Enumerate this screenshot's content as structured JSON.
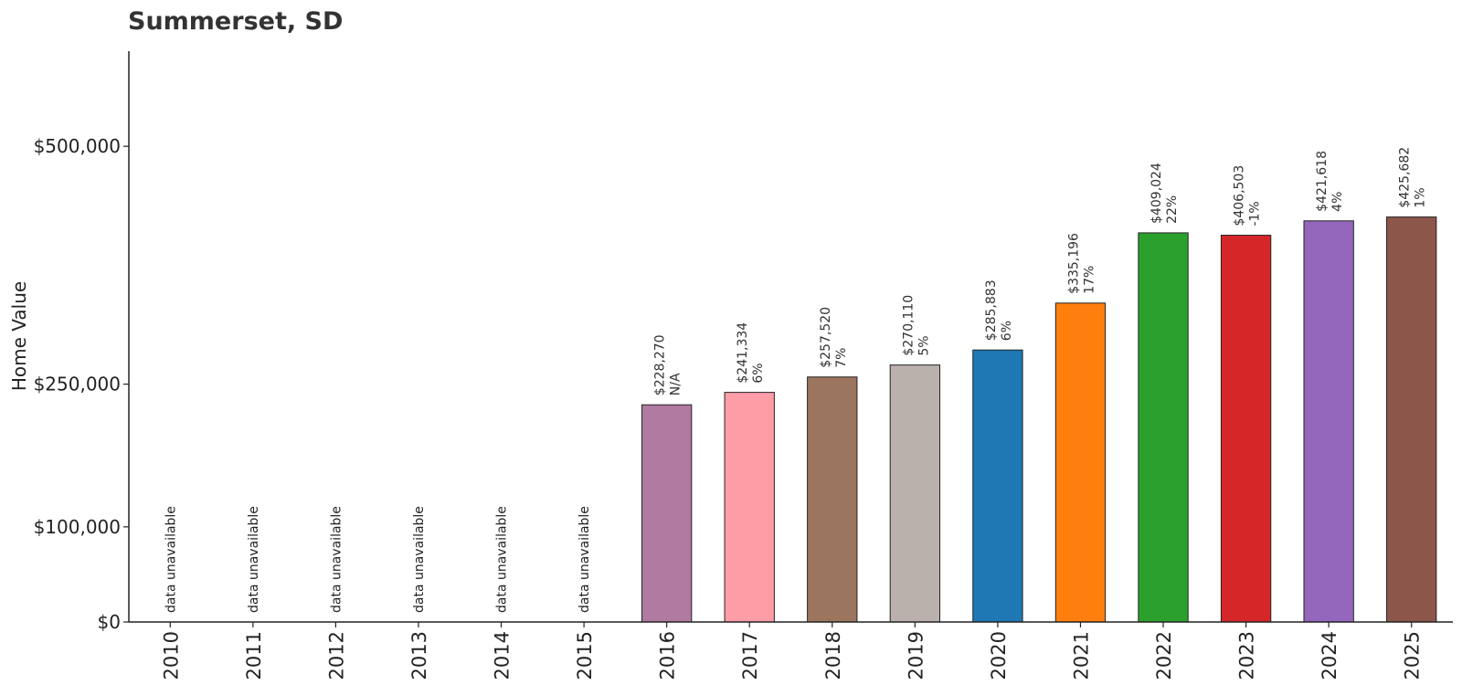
{
  "chart_data": {
    "type": "bar",
    "title": "Summerset, SD",
    "xlabel": "",
    "ylabel": "Home Value",
    "ylim": [
      0,
      600000
    ],
    "y_scale": "linear",
    "grid": false,
    "legend": "none",
    "y_ticks": [
      {
        "value": 0,
        "label": "$0"
      },
      {
        "value": 100000,
        "label": "$100,000"
      },
      {
        "value": 250000,
        "label": "$250,000"
      },
      {
        "value": 500000,
        "label": "$500,000"
      }
    ],
    "unavailable_label": "data unavailable",
    "categories": [
      "2010",
      "2011",
      "2012",
      "2013",
      "2014",
      "2015",
      "2016",
      "2017",
      "2018",
      "2019",
      "2020",
      "2021",
      "2022",
      "2023",
      "2024",
      "2025"
    ],
    "values": [
      null,
      null,
      null,
      null,
      null,
      null,
      228270,
      241334,
      257520,
      270110,
      285883,
      335196,
      409024,
      406503,
      421618,
      425682
    ],
    "value_labels": [
      "",
      "",
      "",
      "",
      "",
      "",
      "$228,270",
      "$241,334",
      "$257,520",
      "$270,110",
      "$285,883",
      "$335,196",
      "$409,024",
      "$406,503",
      "$421,618",
      "$425,682"
    ],
    "change_labels": [
      "",
      "",
      "",
      "",
      "",
      "",
      "N/A",
      "6%",
      "7%",
      "5%",
      "6%",
      "17%",
      "22%",
      "-1%",
      "4%",
      "1%"
    ],
    "colors": [
      "",
      "",
      "",
      "",
      "",
      "",
      "#b07aa1",
      "#ff9da7",
      "#9c755f",
      "#bab0ac",
      "#1f77b4",
      "#ff7f0e",
      "#2ca02c",
      "#d62728",
      "#9467bd",
      "#8c564b"
    ]
  }
}
